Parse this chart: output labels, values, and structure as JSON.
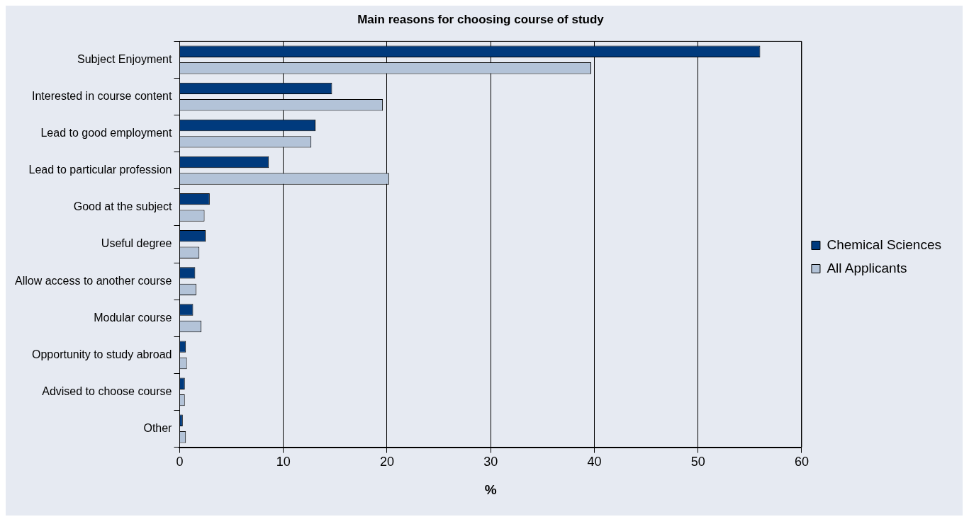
{
  "chart_data": {
    "type": "bar",
    "orientation": "horizontal",
    "title": "Main reasons for choosing course of study",
    "xlabel": "%",
    "categories": [
      "Subject Enjoyment",
      "Interested in course content",
      "Lead to good employment",
      "Lead to particular profession",
      "Good at the subject",
      "Useful degree",
      "Allow access to another course",
      "Modular course",
      "Opportunity to study abroad",
      "Advised to choose course",
      "Other"
    ],
    "series": [
      {
        "name": "Chemical Sciences",
        "color": "#003a7d",
        "values": [
          56,
          14.7,
          13.1,
          8.6,
          2.9,
          2.5,
          1.5,
          1.3,
          0.6,
          0.5,
          0.3
        ]
      },
      {
        "name": "All Applicants",
        "color": "#b3c3d8",
        "values": [
          39.7,
          19.6,
          12.7,
          20.2,
          2.4,
          1.9,
          1.6,
          2.1,
          0.7,
          0.5,
          0.6
        ]
      }
    ],
    "xlim": [
      0,
      60
    ],
    "xticks": [
      0,
      10,
      20,
      30,
      40,
      50,
      60
    ],
    "grid": "x",
    "legend": "right"
  }
}
